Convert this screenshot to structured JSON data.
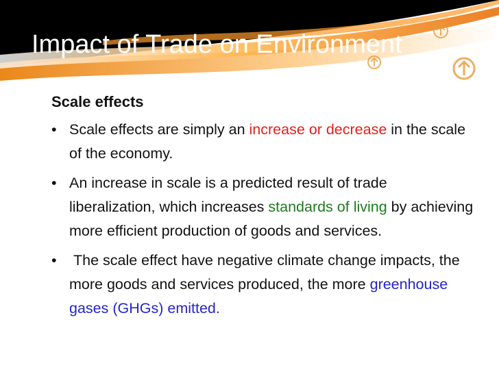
{
  "slide": {
    "title": "Impact of Trade on Environment",
    "heading": "Scale effects",
    "bullets": [
      {
        "segments": [
          {
            "text": "Scale effects are simply an ",
            "color": "#111111"
          },
          {
            "text": "increase or decrease",
            "color": "#e0201b"
          },
          {
            "text": " in the scale of the economy.",
            "color": "#111111"
          }
        ]
      },
      {
        "segments": [
          {
            "text": "An increase in scale is a predicted result of trade liberalization, which increases ",
            "color": "#111111"
          },
          {
            "text": "standards of living",
            "color": "#1e7a1e"
          },
          {
            "text": " by achieving more efficient production of goods and services.",
            "color": "#111111"
          }
        ]
      },
      {
        "segments": [
          {
            "text": " The scale effect have negative climate change impacts, the more goods and services produced, the more ",
            "color": "#111111"
          },
          {
            "text": "greenhouse gases (GHGs) emitted.",
            "color": "#2424c8"
          }
        ]
      }
    ]
  }
}
